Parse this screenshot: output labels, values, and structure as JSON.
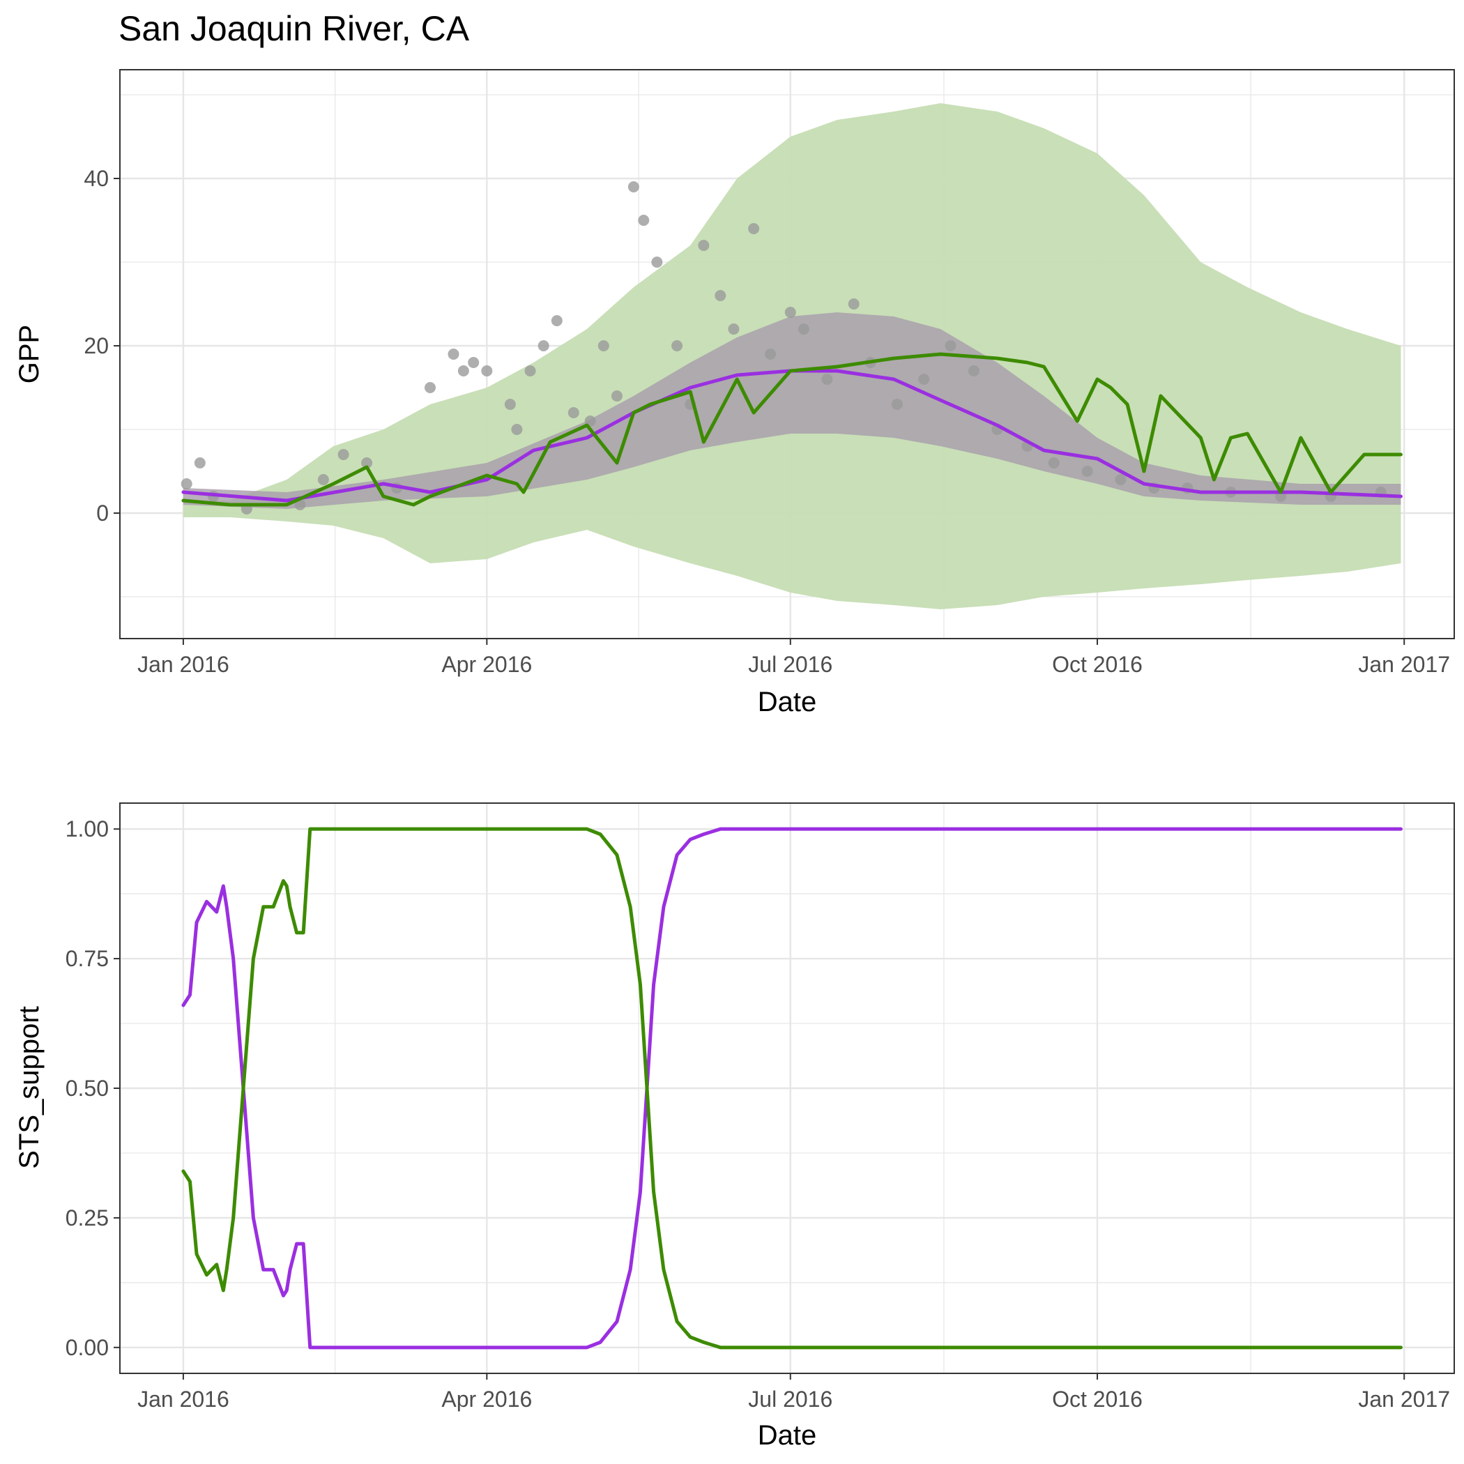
{
  "title": "San Joaquin River, CA",
  "colors": {
    "green_line": "#3d8b00",
    "green_band": "#c6ddb3",
    "purple_line": "#9a2fe0",
    "purple_band": "#a79cab",
    "points": "#9a9a9a",
    "grid": "#e6e6e6"
  },
  "chart_data": [
    {
      "type": "line",
      "title": "San Joaquin River, CA",
      "xlabel": "Date",
      "ylabel": "GPP",
      "x_ticks": [
        "Jan 2016",
        "Apr 2016",
        "Jul 2016",
        "Oct 2016",
        "Jan 2017"
      ],
      "y_ticks": [
        "0",
        "20",
        "40"
      ],
      "xlim": [
        "2015-12-13",
        "2017-01-16"
      ],
      "ylim": [
        -15,
        53
      ],
      "grid": true,
      "series": [
        {
          "role": "observed_points",
          "x": [
            "2016-01-02",
            "2016-01-06",
            "2016-01-10",
            "2016-01-20",
            "2016-02-05",
            "2016-02-12",
            "2016-02-18",
            "2016-02-25",
            "2016-03-05",
            "2016-03-15",
            "2016-03-22",
            "2016-03-25",
            "2016-03-28",
            "2016-04-01",
            "2016-04-08",
            "2016-04-10",
            "2016-04-14",
            "2016-04-18",
            "2016-04-22",
            "2016-04-27",
            "2016-05-02",
            "2016-05-06",
            "2016-05-10",
            "2016-05-15",
            "2016-05-18",
            "2016-05-22",
            "2016-05-28",
            "2016-06-01",
            "2016-06-05",
            "2016-06-10",
            "2016-06-14",
            "2016-06-20",
            "2016-06-25",
            "2016-07-01",
            "2016-07-05",
            "2016-07-12",
            "2016-07-20",
            "2016-07-25",
            "2016-08-02",
            "2016-08-10",
            "2016-08-18",
            "2016-08-25",
            "2016-09-01",
            "2016-09-10",
            "2016-09-18",
            "2016-09-28",
            "2016-10-08",
            "2016-10-18",
            "2016-10-28",
            "2016-11-10",
            "2016-11-25",
            "2016-12-10",
            "2016-12-25"
          ],
          "y": [
            3.5,
            6,
            2,
            0.5,
            1,
            4,
            7,
            6,
            3,
            15,
            19,
            17,
            18,
            17,
            13,
            10,
            17,
            20,
            23,
            12,
            11,
            20,
            14,
            39,
            35,
            30,
            20,
            13,
            32,
            26,
            22,
            34,
            19,
            24,
            22,
            16,
            25,
            18,
            13,
            16,
            20,
            17,
            10,
            8,
            6,
            5,
            4,
            3,
            3,
            2.5,
            2,
            2,
            2.5
          ]
        },
        {
          "role": "green_band",
          "x": [
            "2016-01-01",
            "2016-01-15",
            "2016-02-01",
            "2016-02-15",
            "2016-03-01",
            "2016-03-15",
            "2016-04-01",
            "2016-04-15",
            "2016-05-01",
            "2016-05-15",
            "2016-06-01",
            "2016-06-15",
            "2016-07-01",
            "2016-07-15",
            "2016-08-01",
            "2016-08-15",
            "2016-09-01",
            "2016-09-15",
            "2016-10-01",
            "2016-10-15",
            "2016-11-01",
            "2016-11-15",
            "2016-12-01",
            "2016-12-15",
            "2016-12-31"
          ],
          "upper": [
            1.5,
            1.5,
            4,
            8,
            10,
            13,
            15,
            18,
            22,
            27,
            32,
            40,
            45,
            47,
            48,
            49,
            48,
            46,
            43,
            38,
            30,
            27,
            24,
            22,
            20
          ],
          "lower": [
            -0.5,
            -0.5,
            -1,
            -1.5,
            -3,
            -6,
            -5.5,
            -3.5,
            -2,
            -4,
            -6,
            -7.5,
            -9.5,
            -10.5,
            -11,
            -11.5,
            -11,
            -10,
            -9.5,
            -9,
            -8.5,
            -8,
            -7.5,
            -7,
            -6
          ]
        },
        {
          "role": "purple_band",
          "x": [
            "2016-01-01",
            "2016-02-01",
            "2016-03-01",
            "2016-04-01",
            "2016-05-01",
            "2016-05-15",
            "2016-06-01",
            "2016-06-15",
            "2016-07-01",
            "2016-07-15",
            "2016-08-01",
            "2016-08-15",
            "2016-09-01",
            "2016-09-15",
            "2016-10-01",
            "2016-10-15",
            "2016-11-01",
            "2016-12-01",
            "2016-12-31"
          ],
          "upper": [
            3,
            2.5,
            4,
            6,
            11,
            14,
            18,
            21,
            23.5,
            24,
            23.5,
            22,
            18,
            14,
            9,
            6,
            4.5,
            3.5,
            3.5
          ],
          "lower": [
            1,
            0.5,
            1.5,
            2,
            4,
            5.5,
            7.5,
            8.5,
            9.5,
            9.5,
            9,
            8,
            6.5,
            5,
            3.5,
            2,
            1.5,
            1,
            1
          ]
        },
        {
          "name": "",
          "role": "purple_line",
          "x": [
            "2016-01-01",
            "2016-02-01",
            "2016-03-01",
            "2016-03-15",
            "2016-04-01",
            "2016-04-15",
            "2016-05-01",
            "2016-05-15",
            "2016-06-01",
            "2016-06-15",
            "2016-07-01",
            "2016-07-15",
            "2016-08-01",
            "2016-08-15",
            "2016-09-01",
            "2016-09-15",
            "2016-10-01",
            "2016-10-15",
            "2016-11-01",
            "2016-12-01",
            "2016-12-31"
          ],
          "y": [
            2.5,
            1.5,
            3.5,
            2.5,
            4,
            7.5,
            9,
            12,
            15,
            16.5,
            17,
            17,
            16,
            13.5,
            10.5,
            7.5,
            6.5,
            3.5,
            2.5,
            2.5,
            2
          ]
        },
        {
          "name": "",
          "role": "green_line",
          "x": [
            "2016-01-01",
            "2016-01-15",
            "2016-02-01",
            "2016-02-15",
            "2016-02-25",
            "2016-03-01",
            "2016-03-10",
            "2016-03-15",
            "2016-04-01",
            "2016-04-10",
            "2016-04-12",
            "2016-04-20",
            "2016-05-01",
            "2016-05-10",
            "2016-05-15",
            "2016-05-20",
            "2016-06-01",
            "2016-06-05",
            "2016-06-15",
            "2016-06-20",
            "2016-07-01",
            "2016-07-15",
            "2016-08-01",
            "2016-08-15",
            "2016-09-01",
            "2016-09-10",
            "2016-09-15",
            "2016-09-25",
            "2016-10-01",
            "2016-10-05",
            "2016-10-10",
            "2016-10-15",
            "2016-10-20",
            "2016-11-01",
            "2016-11-05",
            "2016-11-10",
            "2016-11-15",
            "2016-11-25",
            "2016-12-01",
            "2016-12-10",
            "2016-12-20",
            "2016-12-31"
          ],
          "y": [
            1.5,
            1,
            1,
            3.5,
            5.5,
            2,
            1,
            2,
            4.5,
            3.5,
            2.5,
            8.5,
            10.5,
            6,
            12,
            13,
            14.5,
            8.5,
            16,
            12,
            17,
            17.5,
            18.5,
            19,
            18.5,
            18,
            17.5,
            11,
            16,
            15,
            13,
            5,
            14,
            9,
            4,
            9,
            9.5,
            2.5,
            9,
            2.5,
            7,
            7
          ]
        }
      ]
    },
    {
      "type": "line",
      "title": "",
      "xlabel": "Date",
      "ylabel": "STS_support",
      "x_ticks": [
        "Jan 2016",
        "Apr 2016",
        "Jul 2016",
        "Oct 2016",
        "Jan 2017"
      ],
      "y_ticks": [
        "0.00",
        "0.25",
        "0.50",
        "0.75",
        "1.00"
      ],
      "xlim": [
        "2015-12-13",
        "2017-01-16"
      ],
      "ylim": [
        -0.05,
        1.05
      ],
      "grid": true,
      "series": [
        {
          "name": "",
          "role": "purple",
          "x": [
            "2016-01-01",
            "2016-01-03",
            "2016-01-05",
            "2016-01-08",
            "2016-01-11",
            "2016-01-13",
            "2016-01-14",
            "2016-01-16",
            "2016-01-19",
            "2016-01-22",
            "2016-01-25",
            "2016-01-28",
            "2016-01-31",
            "2016-02-01",
            "2016-02-02",
            "2016-02-04",
            "2016-02-06",
            "2016-02-08",
            "2016-04-15",
            "2016-05-01",
            "2016-05-05",
            "2016-05-10",
            "2016-05-14",
            "2016-05-17",
            "2016-05-19",
            "2016-05-21",
            "2016-05-24",
            "2016-05-28",
            "2016-06-01",
            "2016-06-05",
            "2016-06-10",
            "2016-06-20",
            "2016-12-31"
          ],
          "y": [
            0.66,
            0.68,
            0.82,
            0.86,
            0.84,
            0.89,
            0.85,
            0.75,
            0.5,
            0.25,
            0.15,
            0.15,
            0.1,
            0.11,
            0.15,
            0.2,
            0.2,
            0,
            0,
            0,
            0.01,
            0.05,
            0.15,
            0.3,
            0.5,
            0.7,
            0.85,
            0.95,
            0.98,
            0.99,
            1,
            1,
            1
          ]
        },
        {
          "name": "",
          "role": "green",
          "x": [
            "2016-01-01",
            "2016-01-03",
            "2016-01-05",
            "2016-01-08",
            "2016-01-11",
            "2016-01-13",
            "2016-01-14",
            "2016-01-16",
            "2016-01-19",
            "2016-01-22",
            "2016-01-25",
            "2016-01-28",
            "2016-01-31",
            "2016-02-01",
            "2016-02-02",
            "2016-02-04",
            "2016-02-06",
            "2016-02-08",
            "2016-04-15",
            "2016-05-01",
            "2016-05-05",
            "2016-05-10",
            "2016-05-14",
            "2016-05-17",
            "2016-05-19",
            "2016-05-21",
            "2016-05-24",
            "2016-05-28",
            "2016-06-01",
            "2016-06-05",
            "2016-06-10",
            "2016-06-20",
            "2016-12-31"
          ],
          "y": [
            0.34,
            0.32,
            0.18,
            0.14,
            0.16,
            0.11,
            0.15,
            0.25,
            0.5,
            0.75,
            0.85,
            0.85,
            0.9,
            0.89,
            0.85,
            0.8,
            0.8,
            1,
            1,
            1,
            0.99,
            0.95,
            0.85,
            0.7,
            0.5,
            0.3,
            0.15,
            0.05,
            0.02,
            0.01,
            0,
            0,
            0
          ]
        }
      ]
    }
  ]
}
